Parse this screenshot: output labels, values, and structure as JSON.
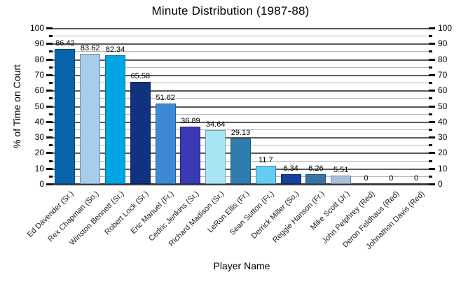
{
  "chart_data": {
    "type": "bar",
    "title": "Minute Distribution (1987-88)",
    "xlabel": "Player Name",
    "ylabel": "% of Time on Court",
    "ylim": [
      0,
      100
    ],
    "y_major_tick_step": 10,
    "y_minor_tick_step": 5,
    "y_tick_labels": [
      "0",
      "10",
      "20",
      "30",
      "40",
      "50",
      "60",
      "70",
      "80",
      "90",
      "100"
    ],
    "y_axis_sides": "both",
    "grid": true,
    "legend": "none",
    "categories": [
      "Ed Davender (Sr.)",
      "Rex Chapman (So.)",
      "Winston Bennett (Sr.)",
      "Robert Lock (Sr.)",
      "Eric Manuel (Fr.)",
      "Cedric Jenkins (Sr.)",
      "Richard Madison (Sr.)",
      "LeRon Ellis (Fr.)",
      "Sean Sutton (Fr.)",
      "Derrick Miller (So.)",
      "Reggie Hanson (Fr.)",
      "Mike Scott (Jr.)",
      "John Pelphrey (Red)",
      "Deron Feldhaus (Red)",
      "Johnathon Davis (Red)"
    ],
    "values": [
      86.42,
      83.62,
      82.34,
      65.58,
      51.62,
      36.89,
      34.64,
      29.13,
      11.7,
      6.34,
      6.26,
      5.51,
      0,
      0,
      0
    ],
    "value_labels": [
      "86.42",
      "83.62",
      "82.34",
      "65.58",
      "51.62",
      "36.89",
      "34.64",
      "29.13",
      "11.7",
      "6.34",
      "6.26",
      "5.51",
      "0",
      "0",
      "0"
    ],
    "bar_colors": [
      "#0a64ab",
      "#a7cdeb",
      "#00a5e3",
      "#12327f",
      "#3d89d6",
      "#3a3ab5",
      "#a8e4f4",
      "#2e7cb0",
      "#63cdf3",
      "#15409c",
      "#3a74a4",
      "#a7c1dc",
      null,
      null,
      null
    ],
    "colors": {
      "background": "#ffffff",
      "grid_major": "#5a5a5a",
      "grid_minor": "#b5b5b5",
      "axis_tick": "#111111",
      "text": "#000000"
    }
  }
}
